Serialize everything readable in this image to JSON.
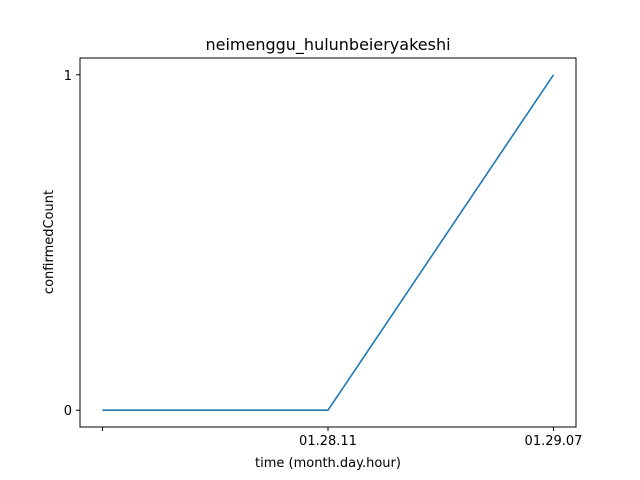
{
  "chart_data": {
    "type": "line",
    "title": "neimenggu_hulunbeieryakeshi",
    "xlabel": "time (month.day.hour)",
    "ylabel": "confirmedCount",
    "categories": [
      "",
      "01.28.11",
      "01.29.07"
    ],
    "series": [
      {
        "values": [
          0,
          0,
          1
        ],
        "color": "#1f77b4"
      }
    ],
    "yticks": [
      0,
      1
    ],
    "ylim": [
      -0.05,
      1.05
    ],
    "grid": false,
    "legend": "none"
  }
}
